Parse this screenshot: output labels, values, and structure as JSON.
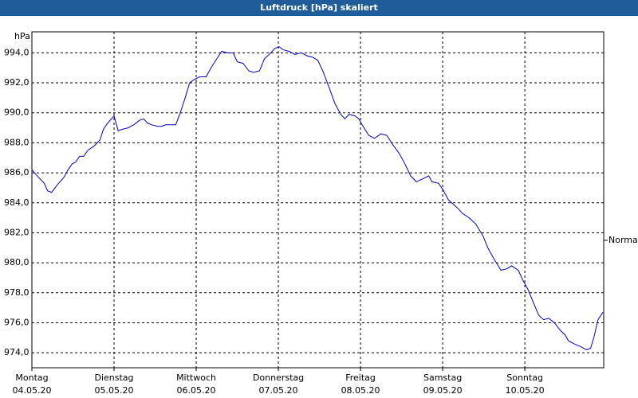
{
  "chart_data": {
    "type": "line",
    "title": "Luftdruck [hPa] skaliert",
    "y_unit": "hPa",
    "color": "#0000c8",
    "grid": true,
    "x": [
      0,
      0.08,
      0.15,
      0.19,
      0.24,
      0.31,
      0.39,
      0.44,
      0.49,
      0.53,
      0.58,
      0.63,
      0.68,
      0.76,
      0.83,
      0.87,
      0.92,
      1.0,
      1.05,
      1.1,
      1.17,
      1.24,
      1.31,
      1.36,
      1.41,
      1.46,
      1.53,
      1.58,
      1.63,
      1.7,
      1.75,
      1.8,
      1.86,
      1.92,
      1.97,
      2.04,
      2.12,
      2.18,
      2.25,
      2.31,
      2.38,
      2.45,
      2.5,
      2.57,
      2.64,
      2.7,
      2.77,
      2.83,
      2.89,
      2.96,
      3.01,
      3.06,
      3.13,
      3.2,
      3.28,
      3.35,
      3.42,
      3.48,
      3.54,
      3.61,
      3.69,
      3.76,
      3.81,
      3.86,
      3.93,
      3.98,
      4.03,
      4.1,
      4.17,
      4.25,
      4.32,
      4.39,
      4.47,
      4.54,
      4.61,
      4.68,
      4.76,
      4.83,
      4.87,
      4.95,
      5.0,
      5.07,
      5.15,
      5.19,
      5.24,
      5.32,
      5.4,
      5.49,
      5.55,
      5.63,
      5.71,
      5.78,
      5.84,
      5.92,
      5.97,
      6.04,
      6.1,
      6.17,
      6.23,
      6.29,
      6.36,
      6.43,
      6.49,
      6.53,
      6.6,
      6.68,
      6.75,
      6.8,
      6.84,
      6.89,
      6.95
    ],
    "values": [
      986.2,
      985.7,
      985.3,
      984.8,
      984.7,
      985.2,
      985.7,
      986.2,
      986.6,
      986.7,
      987.1,
      987.1,
      987.5,
      987.8,
      988.2,
      988.9,
      989.3,
      989.8,
      988.8,
      988.9,
      989.0,
      989.2,
      989.5,
      989.6,
      989.3,
      989.2,
      989.1,
      989.1,
      989.2,
      989.2,
      989.2,
      989.9,
      990.9,
      992.0,
      992.2,
      992.4,
      992.4,
      993.0,
      993.6,
      994.1,
      994.0,
      994.0,
      993.4,
      993.3,
      992.8,
      992.7,
      992.8,
      993.6,
      993.9,
      994.3,
      994.4,
      994.2,
      994.1,
      993.9,
      994.0,
      993.8,
      993.7,
      993.5,
      992.8,
      991.8,
      990.6,
      989.9,
      989.6,
      989.9,
      989.8,
      989.6,
      989.1,
      988.5,
      988.3,
      988.6,
      988.5,
      987.9,
      987.3,
      986.6,
      985.8,
      985.4,
      985.6,
      985.8,
      985.4,
      985.3,
      984.9,
      984.2,
      983.8,
      983.6,
      983.3,
      983.0,
      982.6,
      981.8,
      981.0,
      980.2,
      979.5,
      979.6,
      979.8,
      979.5,
      978.9,
      978.2,
      977.4,
      976.5,
      976.2,
      976.3,
      976.0,
      975.5,
      975.2,
      974.8,
      974.6,
      974.4,
      974.2,
      974.3,
      975.0,
      976.2,
      976.7
    ],
    "xlim": [
      0,
      6.96
    ],
    "xticks": [
      {
        "value": 0,
        "label": "Montag",
        "date": "04.05.20"
      },
      {
        "value": 1,
        "label": "Dienstag",
        "date": "05.05.20"
      },
      {
        "value": 2,
        "label": "Mittwoch",
        "date": "06.05.20"
      },
      {
        "value": 3,
        "label": "Donnerstag",
        "date": "07.05.20"
      },
      {
        "value": 4,
        "label": "Freitag",
        "date": "08.05.20"
      },
      {
        "value": 5,
        "label": "Samstag",
        "date": "09.05.20"
      },
      {
        "value": 6,
        "label": "Sonntag",
        "date": "10.05.20"
      }
    ],
    "ylim": [
      973,
      995.4
    ],
    "yticks": [
      {
        "value": 974,
        "label": "974,0"
      },
      {
        "value": 976,
        "label": "976,0"
      },
      {
        "value": 978,
        "label": "978,0"
      },
      {
        "value": 980,
        "label": "980,0"
      },
      {
        "value": 982,
        "label": "982,0"
      },
      {
        "value": 984,
        "label": "984,0"
      },
      {
        "value": 986,
        "label": "986,0"
      },
      {
        "value": 988,
        "label": "988,0"
      },
      {
        "value": 990,
        "label": "990,0"
      },
      {
        "value": 992,
        "label": "992,0"
      },
      {
        "value": 994,
        "label": "994,0"
      }
    ],
    "reference": {
      "value": 981.5,
      "label": "Normal"
    }
  }
}
